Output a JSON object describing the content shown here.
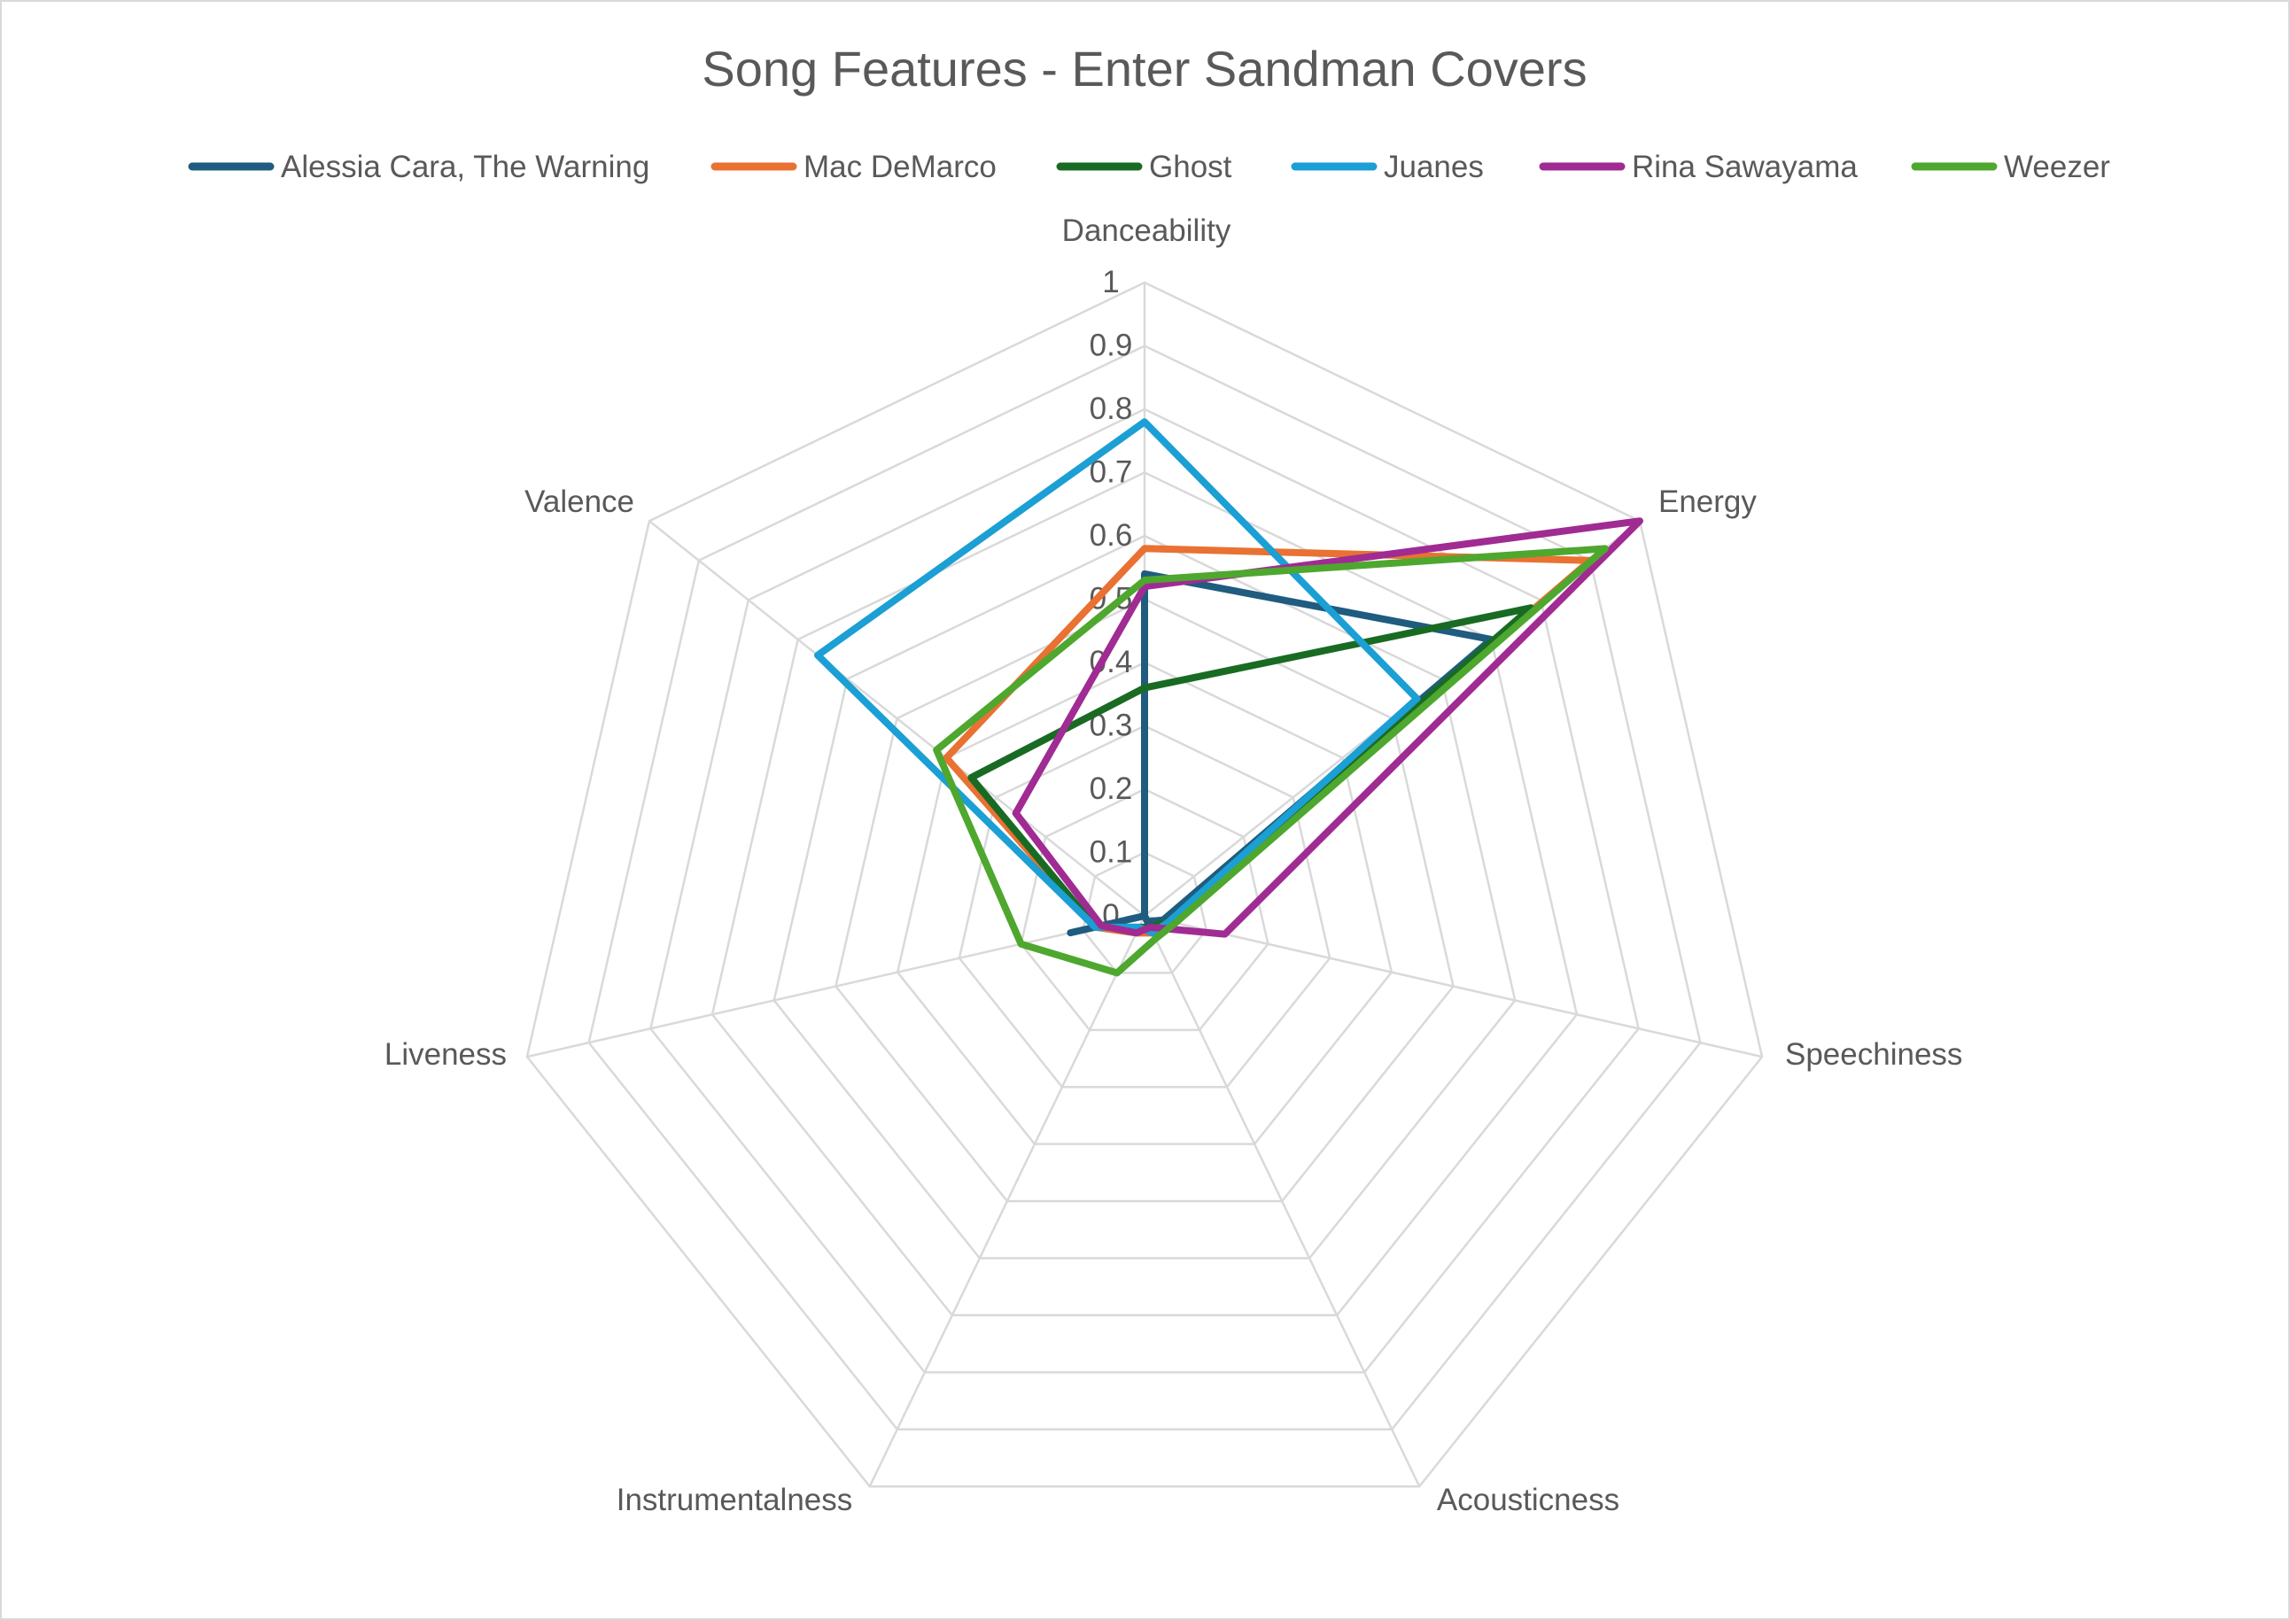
{
  "chart_data": {
    "type": "radar",
    "title": "Song Features - Enter Sandman Covers",
    "axes": [
      "Danceability",
      "Energy",
      "Speechiness",
      "Acousticness",
      "Instrumentalness",
      "Liveness",
      "Valence"
    ],
    "rlim": [
      0,
      1
    ],
    "ticks": [
      "0",
      "0.1",
      "0.2",
      "0.3",
      "0.4",
      "0.5",
      "0.6",
      "0.7",
      "0.8",
      "0.9",
      "1"
    ],
    "grid": true,
    "legend_position": "top",
    "series": [
      {
        "name": "Alessia Cara, The Warning",
        "color": "#1f5c7f",
        "values": [
          0.54,
          0.7,
          0.03,
          0.01,
          0.0,
          0.12,
          0.0
        ]
      },
      {
        "name": "Mac DeMarco",
        "color": "#e97132",
        "values": [
          0.58,
          0.9,
          0.04,
          0.03,
          0.03,
          0.08,
          0.4
        ]
      },
      {
        "name": "Ghost",
        "color": "#196b24",
        "values": [
          0.36,
          0.78,
          0.04,
          0.02,
          0.02,
          0.08,
          0.35
        ]
      },
      {
        "name": "Juanes",
        "color": "#1b9fd4",
        "values": [
          0.78,
          0.55,
          0.04,
          0.03,
          0.02,
          0.08,
          0.66
        ]
      },
      {
        "name": "Rina Sawayama",
        "color": "#a02b93",
        "values": [
          0.52,
          1.0,
          0.13,
          0.02,
          0.03,
          0.07,
          0.26
        ]
      },
      {
        "name": "Weezer",
        "color": "#4ea72e",
        "values": [
          0.53,
          0.93,
          0.05,
          0.04,
          0.1,
          0.2,
          0.42
        ]
      }
    ]
  }
}
